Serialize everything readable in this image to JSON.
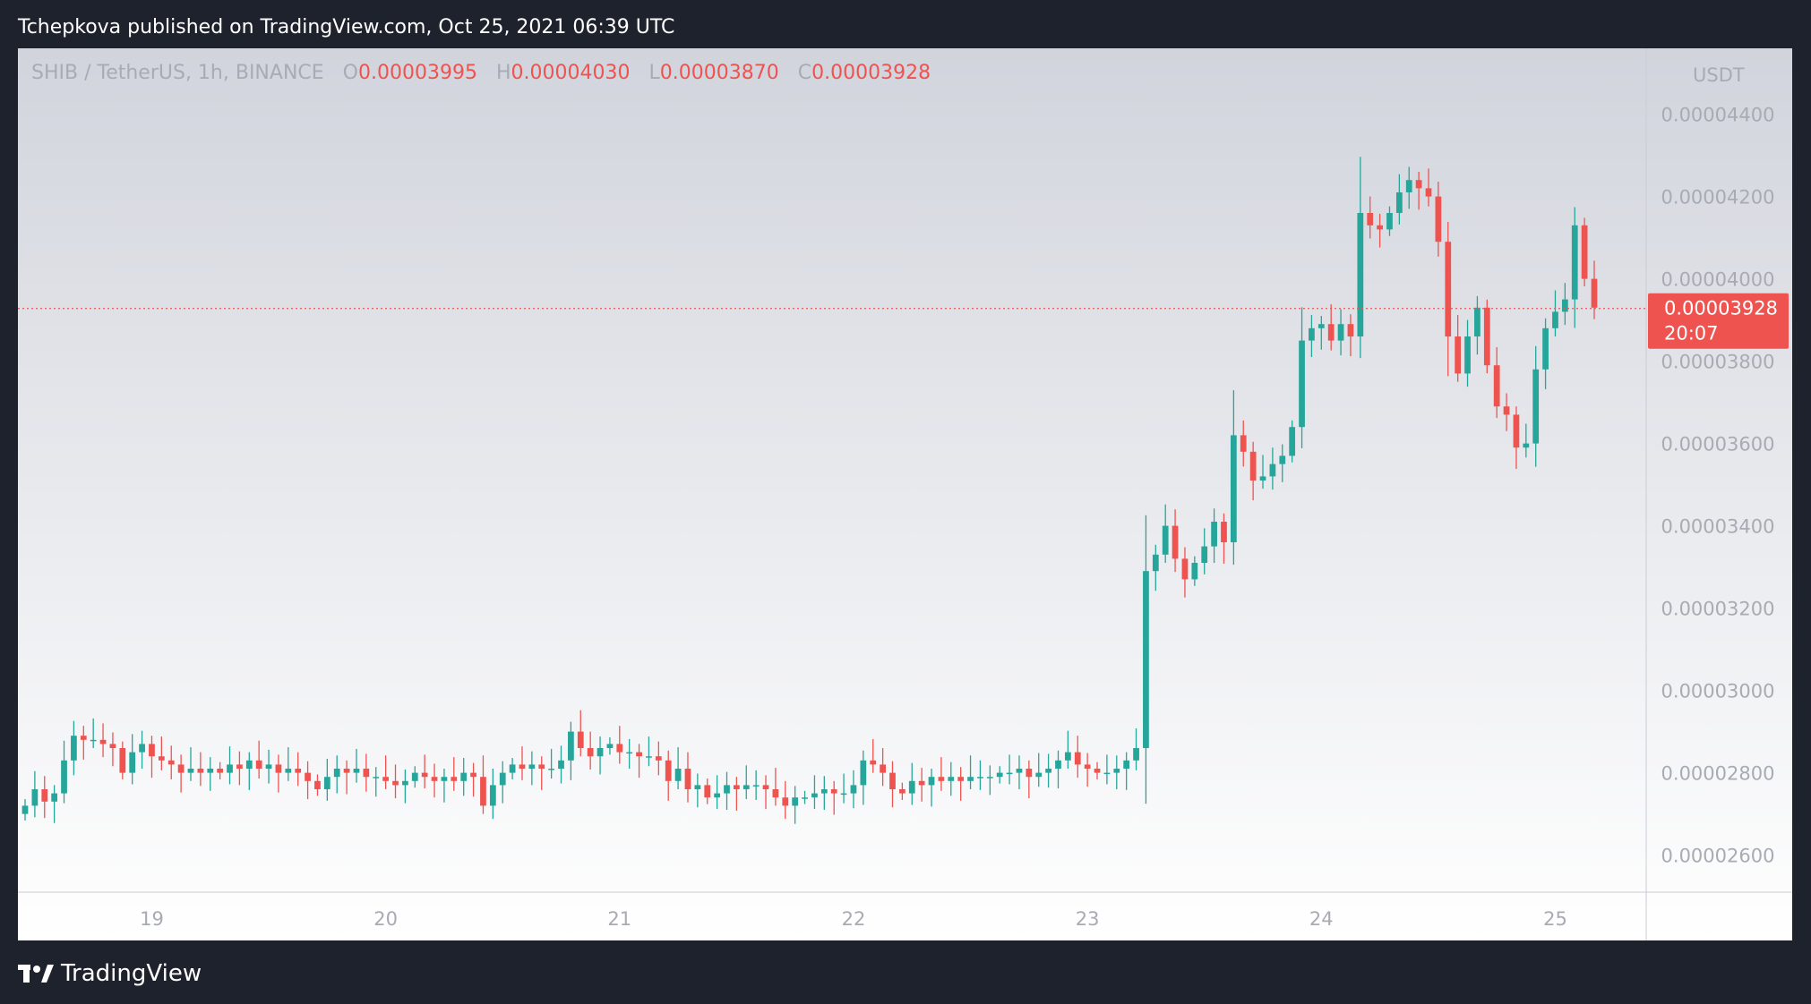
{
  "header": {
    "published_text": "Tchepkova published on TradingView.com, Oct 25, 2021 06:39 UTC"
  },
  "legend": {
    "symbol": "SHIB / TetherUS, 1h, BINANCE",
    "o_label": "O",
    "o_value": "0.00003995",
    "h_label": "H",
    "h_value": "0.00004030",
    "l_label": "L",
    "l_value": "0.00003870",
    "c_label": "C",
    "c_value": "0.00003928"
  },
  "price_axis": {
    "unit": "USDT"
  },
  "last_price": {
    "value": "0.00003928",
    "countdown": "20:07",
    "price": 3.928e-05
  },
  "brand": {
    "name": "TradingView"
  },
  "colors": {
    "up": "#26a69a",
    "down": "#ef5350",
    "background": "#1e222d",
    "axis_text": "#a9abb3"
  },
  "chart_data": {
    "type": "candlestick",
    "title": "SHIB / TetherUS, 1h, BINANCE",
    "interval": "1h",
    "x_tick_labels": [
      "19",
      "20",
      "21",
      "22",
      "23",
      "24",
      "25"
    ],
    "y_tick_labels": [
      "0.00002600",
      "0.00002800",
      "0.00003000",
      "0.00003200",
      "0.00003400",
      "0.00003600",
      "0.00003800",
      "0.00004000",
      "0.00004200",
      "0.00004400"
    ],
    "ylim": [
      2.51e-05,
      4.56e-05
    ],
    "grid": false,
    "close_sequence": [
      2.72e-05,
      2.76e-05,
      2.73e-05,
      2.75e-05,
      2.83e-05,
      2.89e-05,
      2.88e-05,
      2.88e-05,
      2.87e-05,
      2.86e-05,
      2.8e-05,
      2.85e-05,
      2.87e-05,
      2.84e-05,
      2.83e-05,
      2.82e-05,
      2.8e-05,
      2.81e-05,
      2.8e-05,
      2.81e-05,
      2.8e-05,
      2.82e-05,
      2.81e-05,
      2.83e-05,
      2.81e-05,
      2.82e-05,
      2.8e-05,
      2.81e-05,
      2.8e-05,
      2.78e-05,
      2.76e-05,
      2.79e-05,
      2.81e-05,
      2.8e-05,
      2.81e-05,
      2.79e-05,
      2.79e-05,
      2.78e-05,
      2.77e-05,
      2.78e-05,
      2.8e-05,
      2.79e-05,
      2.78e-05,
      2.79e-05,
      2.78e-05,
      2.8e-05,
      2.79e-05,
      2.72e-05,
      2.77e-05,
      2.8e-05,
      2.82e-05,
      2.81e-05,
      2.82e-05,
      2.81e-05,
      2.81e-05,
      2.83e-05,
      2.9e-05,
      2.86e-05,
      2.84e-05,
      2.86e-05,
      2.87e-05,
      2.85e-05,
      2.85e-05,
      2.84e-05,
      2.84e-05,
      2.83e-05,
      2.78e-05,
      2.81e-05,
      2.76e-05,
      2.77e-05,
      2.74e-05,
      2.75e-05,
      2.77e-05,
      2.76e-05,
      2.77e-05,
      2.77e-05,
      2.76e-05,
      2.74e-05,
      2.72e-05,
      2.74e-05,
      2.74e-05,
      2.75e-05,
      2.76e-05,
      2.75e-05,
      2.75e-05,
      2.77e-05,
      2.83e-05,
      2.82e-05,
      2.8e-05,
      2.76e-05,
      2.75e-05,
      2.78e-05,
      2.77e-05,
      2.79e-05,
      2.78e-05,
      2.79e-05,
      2.78e-05,
      2.79e-05,
      2.79e-05,
      2.79e-05,
      2.8e-05,
      2.8e-05,
      2.81e-05,
      2.79e-05,
      2.8e-05,
      2.81e-05,
      2.83e-05,
      2.85e-05,
      2.82e-05,
      2.81e-05,
      2.8e-05,
      2.8e-05,
      2.81e-05,
      2.83e-05,
      2.86e-05,
      3.29e-05,
      3.33e-05,
      3.4e-05,
      3.32e-05,
      3.27e-05,
      3.31e-05,
      3.35e-05,
      3.41e-05,
      3.36e-05,
      3.62e-05,
      3.58e-05,
      3.51e-05,
      3.52e-05,
      3.55e-05,
      3.57e-05,
      3.64e-05,
      3.85e-05,
      3.88e-05,
      3.89e-05,
      3.85e-05,
      3.89e-05,
      3.86e-05,
      4.16e-05,
      4.13e-05,
      4.12e-05,
      4.16e-05,
      4.21e-05,
      4.24e-05,
      4.22e-05,
      4.2e-05,
      4.09e-05,
      3.86e-05,
      3.77e-05,
      3.86e-05,
      3.93e-05,
      3.79e-05,
      3.69e-05,
      3.67e-05,
      3.59e-05,
      3.6e-05,
      3.78e-05,
      3.88e-05,
      3.92e-05,
      3.95e-05,
      4.13e-05,
      4e-05,
      3.93e-05
    ]
  }
}
